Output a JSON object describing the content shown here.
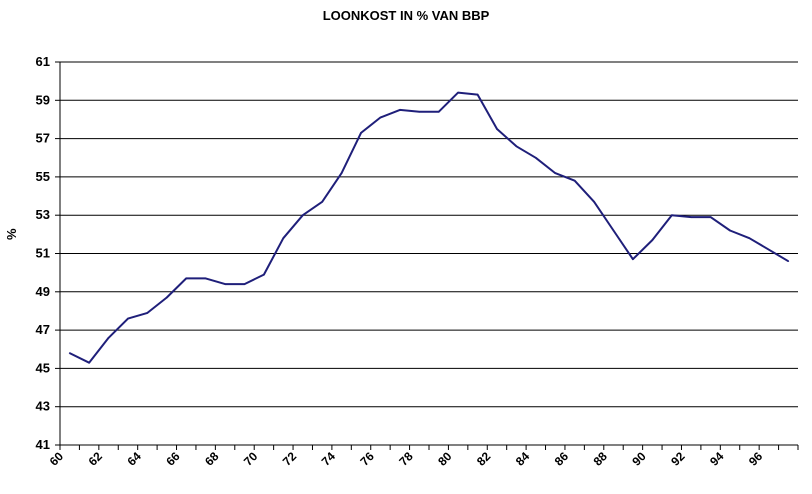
{
  "chart_data": {
    "type": "line",
    "title": "LOONKOST IN % VAN BBP",
    "xlabel": "",
    "ylabel": "%",
    "ylim": [
      41,
      61
    ],
    "xlim": [
      60,
      98
    ],
    "grid": "horizontal",
    "yticks": [
      "41",
      "43",
      "45",
      "47",
      "49",
      "51",
      "53",
      "55",
      "57",
      "59",
      "61"
    ],
    "xticks": [
      "60",
      "62",
      "64",
      "66",
      "68",
      "70",
      "72",
      "74",
      "76",
      "78",
      "80",
      "82",
      "84",
      "86",
      "88",
      "90",
      "92",
      "94",
      "96"
    ],
    "series": [
      {
        "color": "#1f1f7a",
        "x": [
          60.5,
          61.5,
          62.5,
          63.5,
          64.5,
          65.5,
          66.5,
          67.5,
          68.5,
          69.5,
          70.5,
          71.5,
          72.5,
          73.5,
          74.5,
          75.5,
          76.5,
          77.5,
          78.5,
          79.5,
          80.5,
          81.5,
          82.5,
          83.5,
          84.5,
          85.5,
          86.5,
          87.5,
          88.5,
          89.5,
          90.5,
          91.5,
          92.5,
          93.5,
          94.5,
          95.5,
          96.5,
          97.5
        ],
        "values": [
          45.8,
          45.3,
          46.6,
          47.6,
          47.9,
          48.7,
          49.7,
          49.7,
          49.4,
          49.4,
          49.9,
          51.8,
          53.0,
          53.7,
          55.2,
          57.3,
          58.1,
          58.5,
          58.4,
          58.4,
          59.4,
          59.3,
          57.5,
          56.6,
          56.0,
          55.2,
          54.8,
          53.7,
          52.2,
          50.7,
          51.7,
          53.0,
          52.9,
          52.9,
          52.2,
          51.8,
          51.2,
          50.6
        ]
      }
    ]
  }
}
